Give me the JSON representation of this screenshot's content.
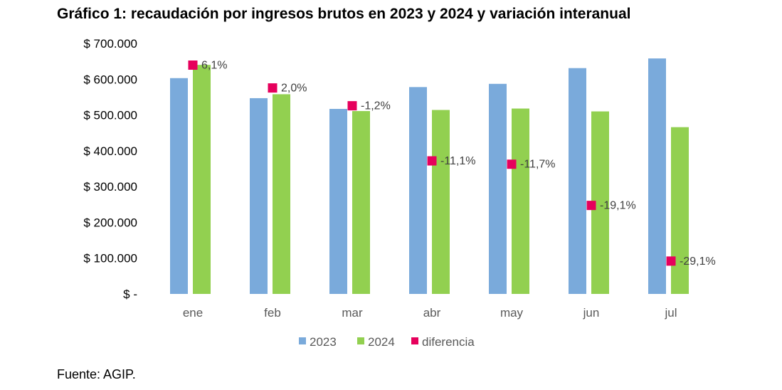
{
  "title": "Gráfico 1: recaudación por ingresos brutos en 2023 y 2024 y variación interanual",
  "source": "Fuente: AGIP.",
  "colors": {
    "s2023": "#7AAADB",
    "s2024": "#92D050",
    "diferencia": "#E6005C"
  },
  "chart_data": {
    "type": "bar",
    "title": "Gráfico 1: recaudación por ingresos brutos en 2023 y 2024 y variación interanual",
    "categories": [
      "ene",
      "feb",
      "mar",
      "abr",
      "may",
      "jun",
      "jul"
    ],
    "series": [
      {
        "name": "2023",
        "values": [
          603000,
          547000,
          517000,
          578000,
          587000,
          631000,
          658000
        ]
      },
      {
        "name": "2024",
        "values": [
          640000,
          558000,
          511000,
          514000,
          518000,
          510000,
          466000
        ]
      }
    ],
    "markers": {
      "name": "diferencia",
      "values": [
        6.1,
        2.0,
        -1.2,
        -11.1,
        -11.7,
        -19.1,
        -29.1
      ],
      "labels": [
        "6,1%",
        "2,0%",
        "-1,2%",
        "-11,1%",
        "-11,7%",
        "-19,1%",
        "-29,1%"
      ]
    },
    "yticks": [
      "$ -",
      "$ 100.000",
      "$ 200.000",
      "$ 300.000",
      "$ 400.000",
      "$ 500.000",
      "$ 600.000",
      "$ 700.000"
    ],
    "ylim": [
      0,
      700000
    ],
    "xlabel": "",
    "ylabel": "",
    "grid": false,
    "legend": "bottom"
  }
}
